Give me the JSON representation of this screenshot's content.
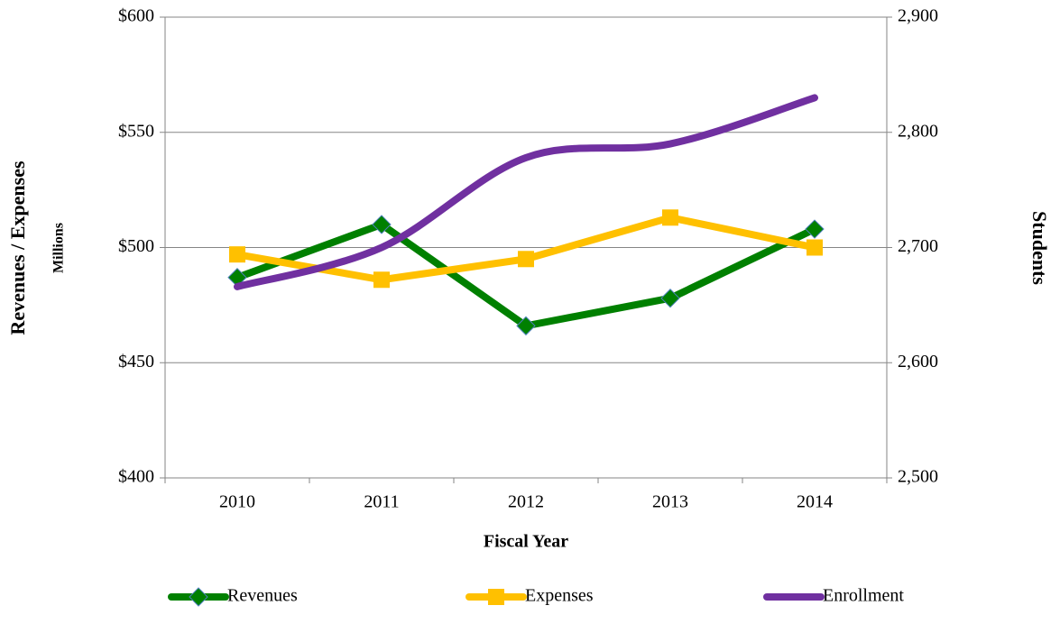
{
  "chart_data": {
    "type": "line",
    "x_label": "Fiscal Year",
    "y_label": "Revenues / Expenses",
    "y_sublabel": "Millions",
    "y2_label": "Students",
    "categories": [
      "2010",
      "2011",
      "2012",
      "2013",
      "2014"
    ],
    "series": [
      {
        "name": "Revenues",
        "color": "#008000",
        "marker": "diamond",
        "values": [
          487,
          510,
          466,
          478,
          508
        ]
      },
      {
        "name": "Expenses",
        "color": "#ffc000",
        "marker": "square",
        "values": [
          497,
          486,
          495,
          513,
          500
        ]
      },
      {
        "name": "Enrollment",
        "color": "#7030a0",
        "axis": "y2",
        "smooth": true,
        "values": [
          2666,
          2700,
          2778,
          2790,
          2830
        ]
      }
    ],
    "ylim": [
      400,
      600
    ],
    "yticks": [
      {
        "value": 400,
        "label": "$400"
      },
      {
        "value": 450,
        "label": "$450"
      },
      {
        "value": 500,
        "label": "$500"
      },
      {
        "value": 550,
        "label": "$550"
      },
      {
        "value": 600,
        "label": "$600"
      }
    ],
    "y2lim": [
      2500,
      2900
    ],
    "y2ticks": [
      {
        "value": 2500,
        "label": "2,500"
      },
      {
        "value": 2600,
        "label": "2,600"
      },
      {
        "value": 2700,
        "label": "2,700"
      },
      {
        "value": 2800,
        "label": "2,800"
      },
      {
        "value": 2900,
        "label": "2,900"
      }
    ],
    "grid": true,
    "legend": "bottom"
  }
}
